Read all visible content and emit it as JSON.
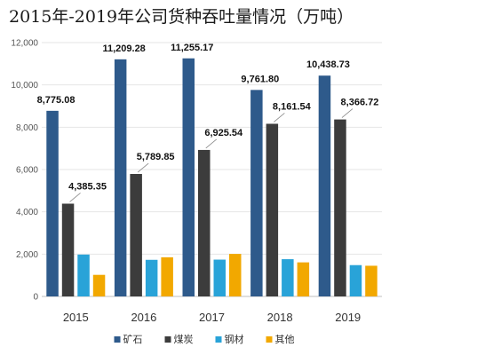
{
  "chart_data": {
    "type": "bar",
    "title": "2015年-2019年公司货种吞吐量情况（万吨）",
    "categories": [
      "2015",
      "2016",
      "2017",
      "2018",
      "2019"
    ],
    "series": [
      {
        "name": "矿石",
        "color": "#2e5a8b",
        "values": [
          8775.08,
          11209.28,
          11255.17,
          9761.8,
          10438.73
        ],
        "labels": [
          "8,775.08",
          "11,209.28",
          "11,255.17",
          "9,761.80",
          "10,438.73"
        ]
      },
      {
        "name": "煤炭",
        "color": "#3c3c3c",
        "values": [
          4385.35,
          5789.85,
          6925.54,
          8161.54,
          8366.72
        ],
        "labels": [
          "4,385.35",
          "5,789.85",
          "6,925.54",
          "8,161.54",
          "8,366.72"
        ]
      },
      {
        "name": "钢材",
        "color": "#29a3d8",
        "values": [
          1980,
          1730,
          1740,
          1760,
          1480
        ]
      },
      {
        "name": "其他",
        "color": "#f2a800",
        "values": [
          1020,
          1850,
          2010,
          1610,
          1450
        ]
      }
    ],
    "ylim": [
      0,
      12000
    ],
    "yticks": [
      "0",
      "2,000",
      "4,000",
      "6,000",
      "8,000",
      "10,000",
      "12,000"
    ],
    "grid": true,
    "legend": "bottom"
  }
}
